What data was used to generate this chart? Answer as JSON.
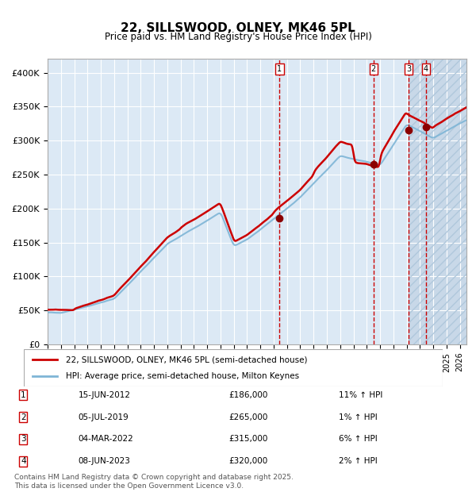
{
  "title_line1": "22, SILLSWOOD, OLNEY, MK46 5PL",
  "title_line2": "Price paid vs. HM Land Registry's House Price Index (HPI)",
  "ylabel": "",
  "xlabel": "",
  "ylim": [
    0,
    420000
  ],
  "yticks": [
    0,
    50000,
    100000,
    150000,
    200000,
    250000,
    300000,
    350000,
    400000
  ],
  "ytick_labels": [
    "£0",
    "£50K",
    "£100K",
    "£150K",
    "£200K",
    "£250K",
    "£300K",
    "£350K",
    "£400K"
  ],
  "xlim_start": 1995.0,
  "xlim_end": 2026.5,
  "background_color": "#ffffff",
  "plot_bg_color": "#dce9f5",
  "hatch_bg_color": "#c8d8e8",
  "grid_color": "#ffffff",
  "red_line_color": "#cc0000",
  "blue_line_color": "#7eb5d6",
  "sale_color": "#8b0000",
  "dashed_line_color": "#cc0000",
  "transaction_vline_start": 2012.45,
  "sales": [
    {
      "num": 1,
      "date": "15-JUN-2012",
      "price": 186000,
      "pct": "11%",
      "dir": "↑",
      "year": 2012.45
    },
    {
      "num": 2,
      "date": "05-JUL-2019",
      "price": 265000,
      "pct": "1%",
      "dir": "↑",
      "year": 2019.51
    },
    {
      "num": 3,
      "date": "04-MAR-2022",
      "price": 315000,
      "pct": "6%",
      "dir": "↑",
      "year": 2022.17
    },
    {
      "num": 4,
      "date": "08-JUN-2023",
      "price": 320000,
      "pct": "2%",
      "dir": "↑",
      "year": 2023.44
    }
  ],
  "legend_entries": [
    {
      "label": "22, SILLSWOOD, OLNEY, MK46 5PL (semi-detached house)",
      "color": "#cc0000",
      "lw": 2
    },
    {
      "label": "HPI: Average price, semi-detached house, Milton Keynes",
      "color": "#7eb5d6",
      "lw": 2
    }
  ],
  "footnote": "Contains HM Land Registry data © Crown copyright and database right 2025.\nThis data is licensed under the Open Government Licence v3.0.",
  "hatch_start": 2022.17,
  "hatch_end": 2026.5
}
